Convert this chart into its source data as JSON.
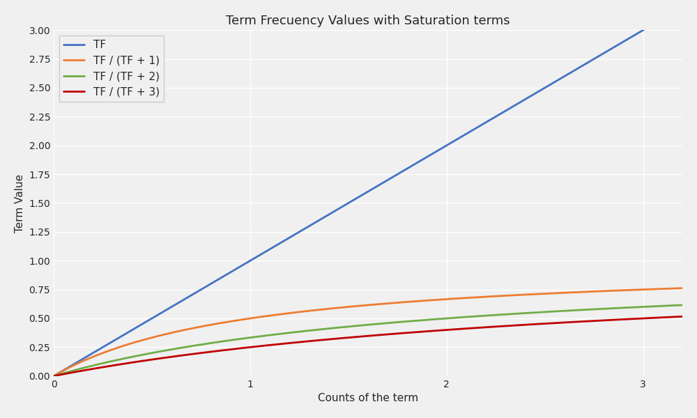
{
  "title": "Term Frecuency Values with Saturation terms",
  "xlabel": "Counts of the term",
  "ylabel": "Term Value",
  "xlim": [
    0,
    3.2
  ],
  "ylim": [
    0.0,
    3.0
  ],
  "x_max": 3.2,
  "series": [
    {
      "label": "TF",
      "color": "#4472C4",
      "k": 0
    },
    {
      "label": "TF / (TF + 1)",
      "color": "#ED7D31",
      "k": 1
    },
    {
      "label": "TF / (TF + 2)",
      "color": "#70AD47",
      "k": 2
    },
    {
      "label": "TF / (TF + 3)",
      "color": "#C00000",
      "k": 3
    }
  ],
  "yticks": [
    0.0,
    0.25,
    0.5,
    0.75,
    1.0,
    1.25,
    1.5,
    1.75,
    2.0,
    2.25,
    2.5,
    2.75,
    3.0
  ],
  "xticks": [
    0,
    1,
    2,
    3
  ],
  "grid": true,
  "legend_loc": "upper left",
  "linewidth": 2.0,
  "figsize": [
    10,
    6
  ],
  "dpi": 100,
  "bg_color": "#F0F0F0",
  "grid_color": "#FFFFFF",
  "title_fontsize": 13,
  "label_fontsize": 11,
  "legend_fontsize": 11,
  "tick_fontsize": 10
}
